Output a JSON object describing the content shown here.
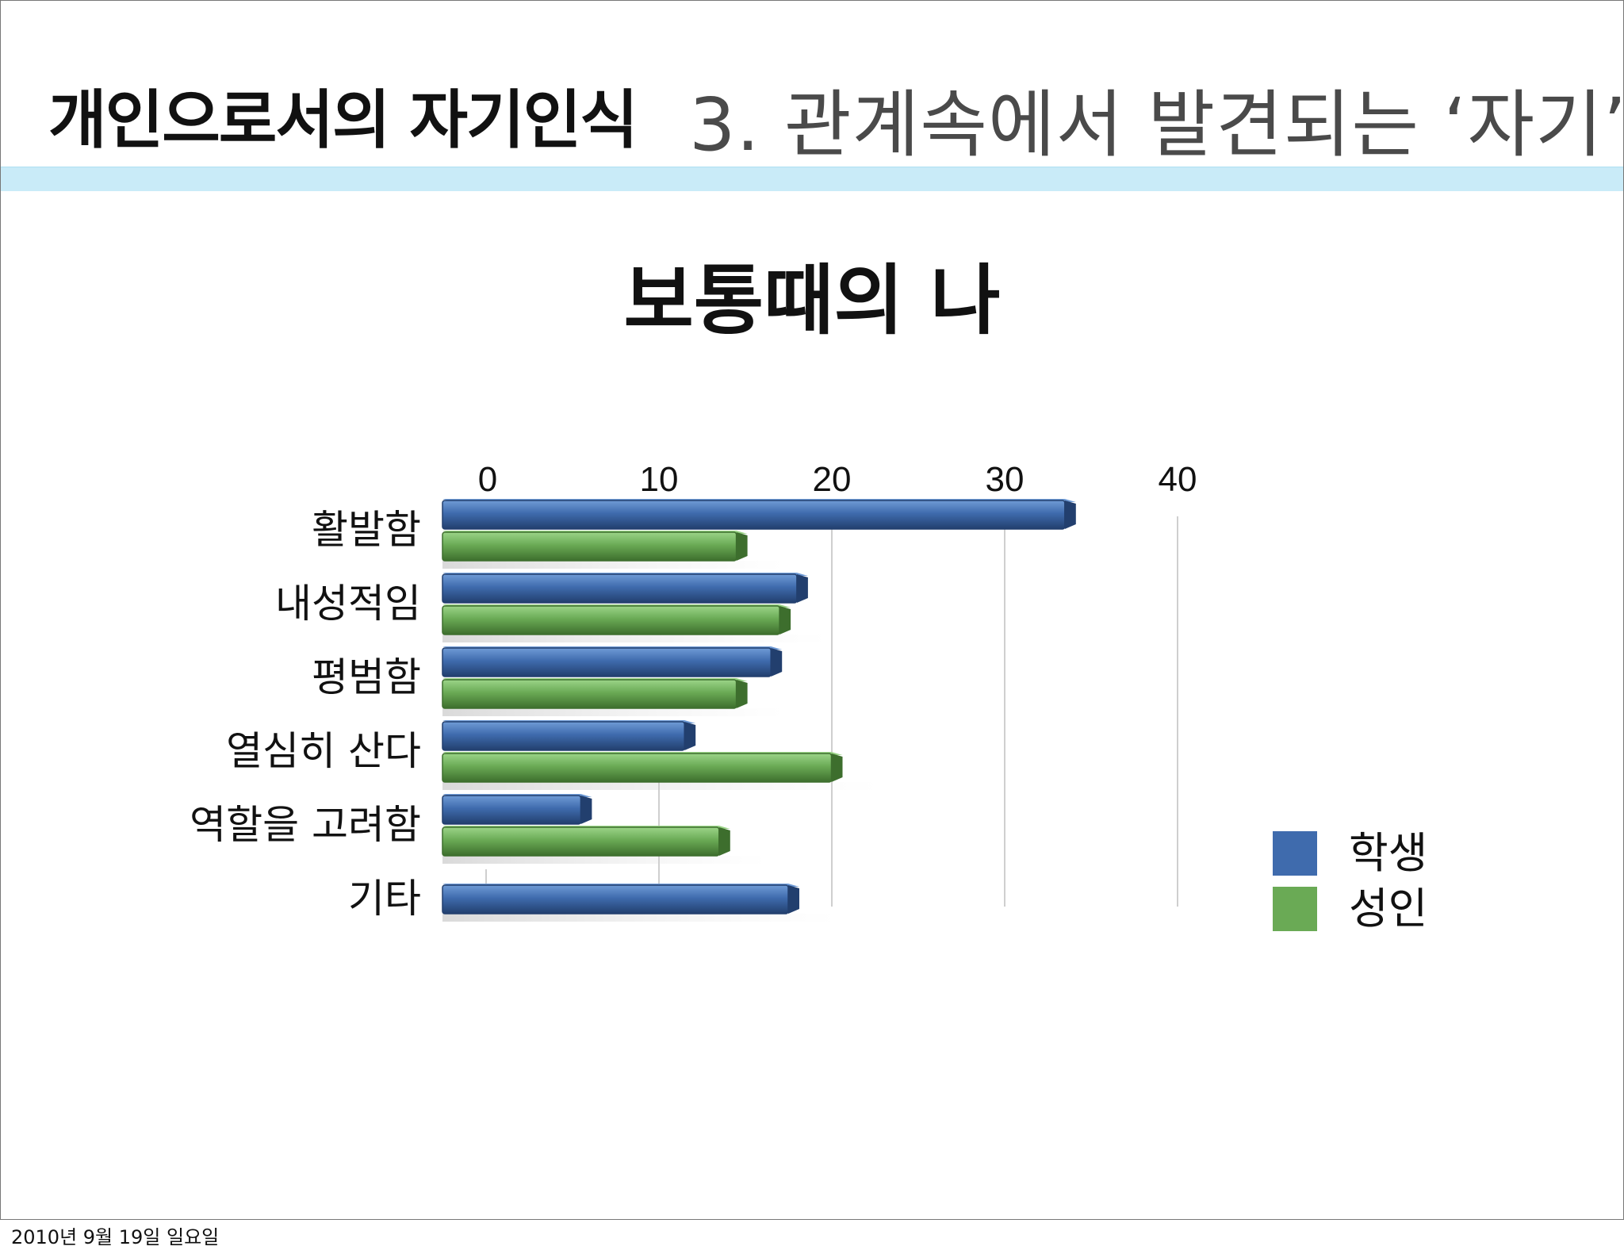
{
  "header": {
    "section_title": "개인으로서의 자기인식",
    "topic_title": "3. 관계속에서 발견되는 ‘자기’"
  },
  "footer": {
    "date": "2010년 9월 19일 일요일"
  },
  "colors": {
    "student": "#3f6bad",
    "adult": "#6aaa55",
    "accent_rule": "#c9ebf8"
  },
  "chart_data": {
    "type": "bar",
    "orientation": "horizontal",
    "title": "보통때의 나",
    "categories": [
      "활발함",
      "내성적임",
      "평범함",
      "열심히 산다",
      "역할을 고려함",
      "기타"
    ],
    "series": [
      {
        "name": "학생",
        "values": [
          36,
          20.5,
          19,
          14,
          8,
          20
        ]
      },
      {
        "name": "성인",
        "values": [
          17,
          19.5,
          17,
          22.5,
          16,
          null
        ]
      }
    ],
    "xticks": [
      "0",
      "10",
      "20",
      "30",
      "40"
    ],
    "xlim": [
      0,
      40
    ],
    "grid": true,
    "legend_position": "right",
    "style": "3d"
  }
}
